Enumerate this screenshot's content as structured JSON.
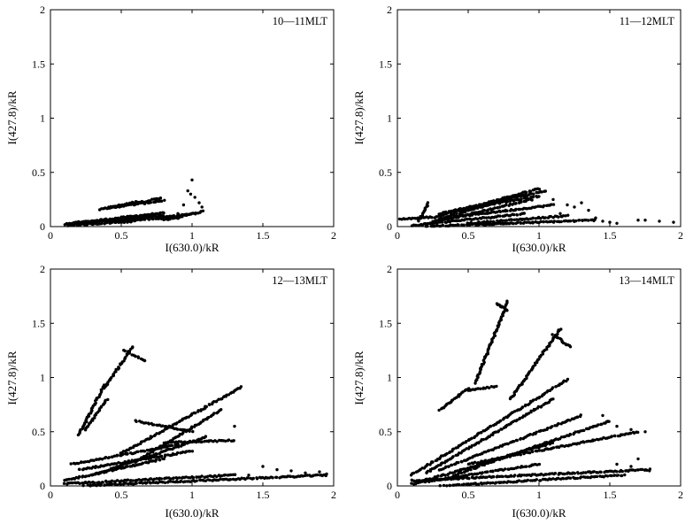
{
  "figure": {
    "panels": [
      {
        "title": "10—11MLT",
        "xlabel": "I(630.0)/kR",
        "ylabel": "I(427.8)/kR",
        "xlim": [
          0,
          2
        ],
        "ylim": [
          0,
          2
        ],
        "xticks": [
          "0",
          "0.5",
          "1",
          "1.5",
          "2"
        ],
        "yticks": [
          "0",
          "0.5",
          "1",
          "1.5",
          "2"
        ]
      },
      {
        "title": "11—12MLT",
        "xlabel": "I(630.0)/kR",
        "ylabel": "I(427.8)/kR",
        "xlim": [
          0,
          2
        ],
        "ylim": [
          0,
          2
        ],
        "xticks": [
          "0",
          "0.5",
          "1",
          "1.5",
          "2"
        ],
        "yticks": [
          "0",
          "0.5",
          "1",
          "1.5",
          "2"
        ]
      },
      {
        "title": "12—13MLT",
        "xlabel": "I(630.0)/kR",
        "ylabel": "I(427.8)/kR",
        "xlim": [
          0,
          2
        ],
        "ylim": [
          0,
          2
        ],
        "xticks": [
          "0",
          "0.5",
          "1",
          "1.5",
          "2"
        ],
        "yticks": [
          "0",
          "0.5",
          "1",
          "1.5",
          "2"
        ]
      },
      {
        "title": "13—14MLT",
        "xlabel": "I(630.0)/kR",
        "ylabel": "I(427.8)/kR",
        "xlim": [
          0,
          2
        ],
        "ylim": [
          0,
          2
        ],
        "xticks": [
          "0",
          "0.5",
          "1",
          "1.5",
          "2"
        ],
        "yticks": [
          "0",
          "0.5",
          "1",
          "1.5",
          "2"
        ]
      }
    ],
    "marker_color": "#000000"
  },
  "chart_data": [
    {
      "type": "scatter",
      "title": "10—11MLT",
      "xlabel": "I(630.0)/kR",
      "ylabel": "I(427.8)/kR",
      "xlim": [
        0,
        2
      ],
      "ylim": [
        0,
        2
      ],
      "grid": false,
      "traces": [
        {
          "x": [
            0.1,
            0.8
          ],
          "y": [
            0.02,
            0.1
          ]
        },
        {
          "x": [
            0.15,
            0.75
          ],
          "y": [
            0.03,
            0.12
          ]
        },
        {
          "x": [
            0.2,
            0.9
          ],
          "y": [
            0.04,
            0.08
          ]
        },
        {
          "x": [
            0.12,
            0.6
          ],
          "y": [
            0.01,
            0.05
          ]
        },
        {
          "x": [
            0.35,
            0.62
          ],
          "y": [
            0.16,
            0.23
          ]
        },
        {
          "x": [
            0.4,
            0.78
          ],
          "y": [
            0.17,
            0.26
          ]
        },
        {
          "x": [
            0.45,
            0.8
          ],
          "y": [
            0.18,
            0.24
          ]
        },
        {
          "x": [
            0.55,
            0.8
          ],
          "y": [
            0.05,
            0.13
          ]
        },
        {
          "x": [
            0.75,
            1.0
          ],
          "y": [
            0.08,
            0.12
          ]
        },
        {
          "x": [
            0.8,
            1.08
          ],
          "y": [
            0.06,
            0.14
          ]
        }
      ],
      "points": [
        {
          "x": 1.0,
          "y": 0.43
        },
        {
          "x": 0.97,
          "y": 0.33
        },
        {
          "x": 0.99,
          "y": 0.3
        },
        {
          "x": 1.02,
          "y": 0.27
        },
        {
          "x": 1.05,
          "y": 0.22
        },
        {
          "x": 1.07,
          "y": 0.18
        },
        {
          "x": 0.94,
          "y": 0.2
        },
        {
          "x": 0.9,
          "y": 0.12
        }
      ]
    },
    {
      "type": "scatter",
      "title": "11—12MLT",
      "xlabel": "I(630.0)/kR",
      "ylabel": "I(427.8)/kR",
      "xlim": [
        0,
        2
      ],
      "ylim": [
        0,
        2
      ],
      "grid": false,
      "traces": [
        {
          "x": [
            0.02,
            0.3
          ],
          "y": [
            0.07,
            0.09
          ]
        },
        {
          "x": [
            0.15,
            0.22
          ],
          "y": [
            0.05,
            0.22
          ]
        },
        {
          "x": [
            0.3,
            1.0
          ],
          "y": [
            0.1,
            0.35
          ]
        },
        {
          "x": [
            0.25,
            0.9
          ],
          "y": [
            0.05,
            0.3
          ]
        },
        {
          "x": [
            0.2,
            0.95
          ],
          "y": [
            0.02,
            0.25
          ]
        },
        {
          "x": [
            0.3,
            1.05
          ],
          "y": [
            0.12,
            0.33
          ]
        },
        {
          "x": [
            0.35,
            1.1
          ],
          "y": [
            0.08,
            0.2
          ]
        },
        {
          "x": [
            0.1,
            0.9
          ],
          "y": [
            0.01,
            0.12
          ]
        },
        {
          "x": [
            0.4,
            1.0
          ],
          "y": [
            0.15,
            0.28
          ]
        },
        {
          "x": [
            0.5,
            1.2
          ],
          "y": [
            0.03,
            0.1
          ]
        },
        {
          "x": [
            0.6,
            1.4
          ],
          "y": [
            0.02,
            0.06
          ]
        },
        {
          "x": [
            0.15,
            0.8
          ],
          "y": [
            0.0,
            0.03
          ]
        }
      ],
      "points": [
        {
          "x": 1.2,
          "y": 0.2
        },
        {
          "x": 1.25,
          "y": 0.18
        },
        {
          "x": 1.3,
          "y": 0.22
        },
        {
          "x": 1.35,
          "y": 0.15
        },
        {
          "x": 1.4,
          "y": 0.08
        },
        {
          "x": 1.45,
          "y": 0.05
        },
        {
          "x": 1.5,
          "y": 0.04
        },
        {
          "x": 1.55,
          "y": 0.03
        },
        {
          "x": 1.7,
          "y": 0.06
        },
        {
          "x": 1.75,
          "y": 0.06
        },
        {
          "x": 1.85,
          "y": 0.05
        },
        {
          "x": 1.95,
          "y": 0.04
        },
        {
          "x": 1.1,
          "y": 0.25
        },
        {
          "x": 1.15,
          "y": 0.12
        }
      ]
    },
    {
      "type": "scatter",
      "title": "12—13MLT",
      "xlabel": "I(630.0)/kR",
      "ylabel": "I(427.8)/kR",
      "xlim": [
        0,
        2
      ],
      "ylim": [
        0,
        2
      ],
      "grid": false,
      "traces": [
        {
          "x": [
            0.2,
            0.38
          ],
          "y": [
            0.47,
            0.93
          ]
        },
        {
          "x": [
            0.25,
            0.4
          ],
          "y": [
            0.52,
            0.8
          ]
        },
        {
          "x": [
            0.38,
            0.58
          ],
          "y": [
            0.9,
            1.28
          ]
        },
        {
          "x": [
            0.52,
            0.67
          ],
          "y": [
            1.25,
            1.15
          ]
        },
        {
          "x": [
            0.5,
            1.35
          ],
          "y": [
            0.3,
            0.91
          ]
        },
        {
          "x": [
            0.6,
            1.2
          ],
          "y": [
            0.22,
            0.7
          ]
        },
        {
          "x": [
            0.15,
            0.9
          ],
          "y": [
            0.2,
            0.38
          ]
        },
        {
          "x": [
            0.2,
            1.0
          ],
          "y": [
            0.15,
            0.32
          ]
        },
        {
          "x": [
            0.3,
            1.1
          ],
          "y": [
            0.1,
            0.45
          ]
        },
        {
          "x": [
            0.1,
            0.8
          ],
          "y": [
            0.05,
            0.25
          ]
        },
        {
          "x": [
            0.1,
            1.3
          ],
          "y": [
            0.02,
            0.1
          ]
        },
        {
          "x": [
            0.2,
            1.95
          ],
          "y": [
            0.0,
            0.1
          ]
        },
        {
          "x": [
            0.8,
            1.3
          ],
          "y": [
            0.4,
            0.42
          ]
        },
        {
          "x": [
            0.6,
            1.0
          ],
          "y": [
            0.6,
            0.5
          ]
        }
      ],
      "points": [
        {
          "x": 1.5,
          "y": 0.18
        },
        {
          "x": 1.6,
          "y": 0.15
        },
        {
          "x": 1.7,
          "y": 0.14
        },
        {
          "x": 1.8,
          "y": 0.12
        },
        {
          "x": 1.9,
          "y": 0.13
        },
        {
          "x": 1.95,
          "y": 0.11
        },
        {
          "x": 1.4,
          "y": 0.1
        },
        {
          "x": 1.3,
          "y": 0.55
        }
      ]
    },
    {
      "type": "scatter",
      "title": "13—14MLT",
      "xlabel": "I(630.0)/kR",
      "ylabel": "I(427.8)/kR",
      "xlim": [
        0,
        2
      ],
      "ylim": [
        0,
        2
      ],
      "grid": false,
      "traces": [
        {
          "x": [
            0.55,
            0.78
          ],
          "y": [
            0.95,
            1.7
          ]
        },
        {
          "x": [
            0.7,
            0.78
          ],
          "y": [
            1.68,
            1.62
          ]
        },
        {
          "x": [
            0.8,
            1.15
          ],
          "y": [
            0.8,
            1.45
          ]
        },
        {
          "x": [
            1.1,
            1.22
          ],
          "y": [
            1.4,
            1.28
          ]
        },
        {
          "x": [
            0.3,
            0.5
          ],
          "y": [
            0.7,
            0.9
          ]
        },
        {
          "x": [
            0.5,
            0.7
          ],
          "y": [
            0.88,
            0.92
          ]
        },
        {
          "x": [
            0.1,
            1.2
          ],
          "y": [
            0.1,
            0.98
          ]
        },
        {
          "x": [
            0.2,
            1.1
          ],
          "y": [
            0.12,
            0.8
          ]
        },
        {
          "x": [
            0.3,
            1.3
          ],
          "y": [
            0.15,
            0.65
          ]
        },
        {
          "x": [
            0.4,
            1.5
          ],
          "y": [
            0.1,
            0.6
          ]
        },
        {
          "x": [
            0.5,
            1.7
          ],
          "y": [
            0.2,
            0.5
          ]
        },
        {
          "x": [
            0.2,
            1.1
          ],
          "y": [
            0.05,
            0.4
          ]
        },
        {
          "x": [
            0.1,
            1.0
          ],
          "y": [
            0.02,
            0.2
          ]
        },
        {
          "x": [
            0.1,
            1.78
          ],
          "y": [
            0.05,
            0.15
          ]
        },
        {
          "x": [
            0.3,
            1.6
          ],
          "y": [
            0.0,
            0.1
          ]
        }
      ],
      "points": [
        {
          "x": 1.45,
          "y": 0.65
        },
        {
          "x": 1.55,
          "y": 0.55
        },
        {
          "x": 1.65,
          "y": 0.52
        },
        {
          "x": 1.75,
          "y": 0.5
        },
        {
          "x": 1.7,
          "y": 0.25
        },
        {
          "x": 1.65,
          "y": 0.18
        },
        {
          "x": 1.78,
          "y": 0.14
        },
        {
          "x": 1.55,
          "y": 0.2
        }
      ]
    }
  ]
}
